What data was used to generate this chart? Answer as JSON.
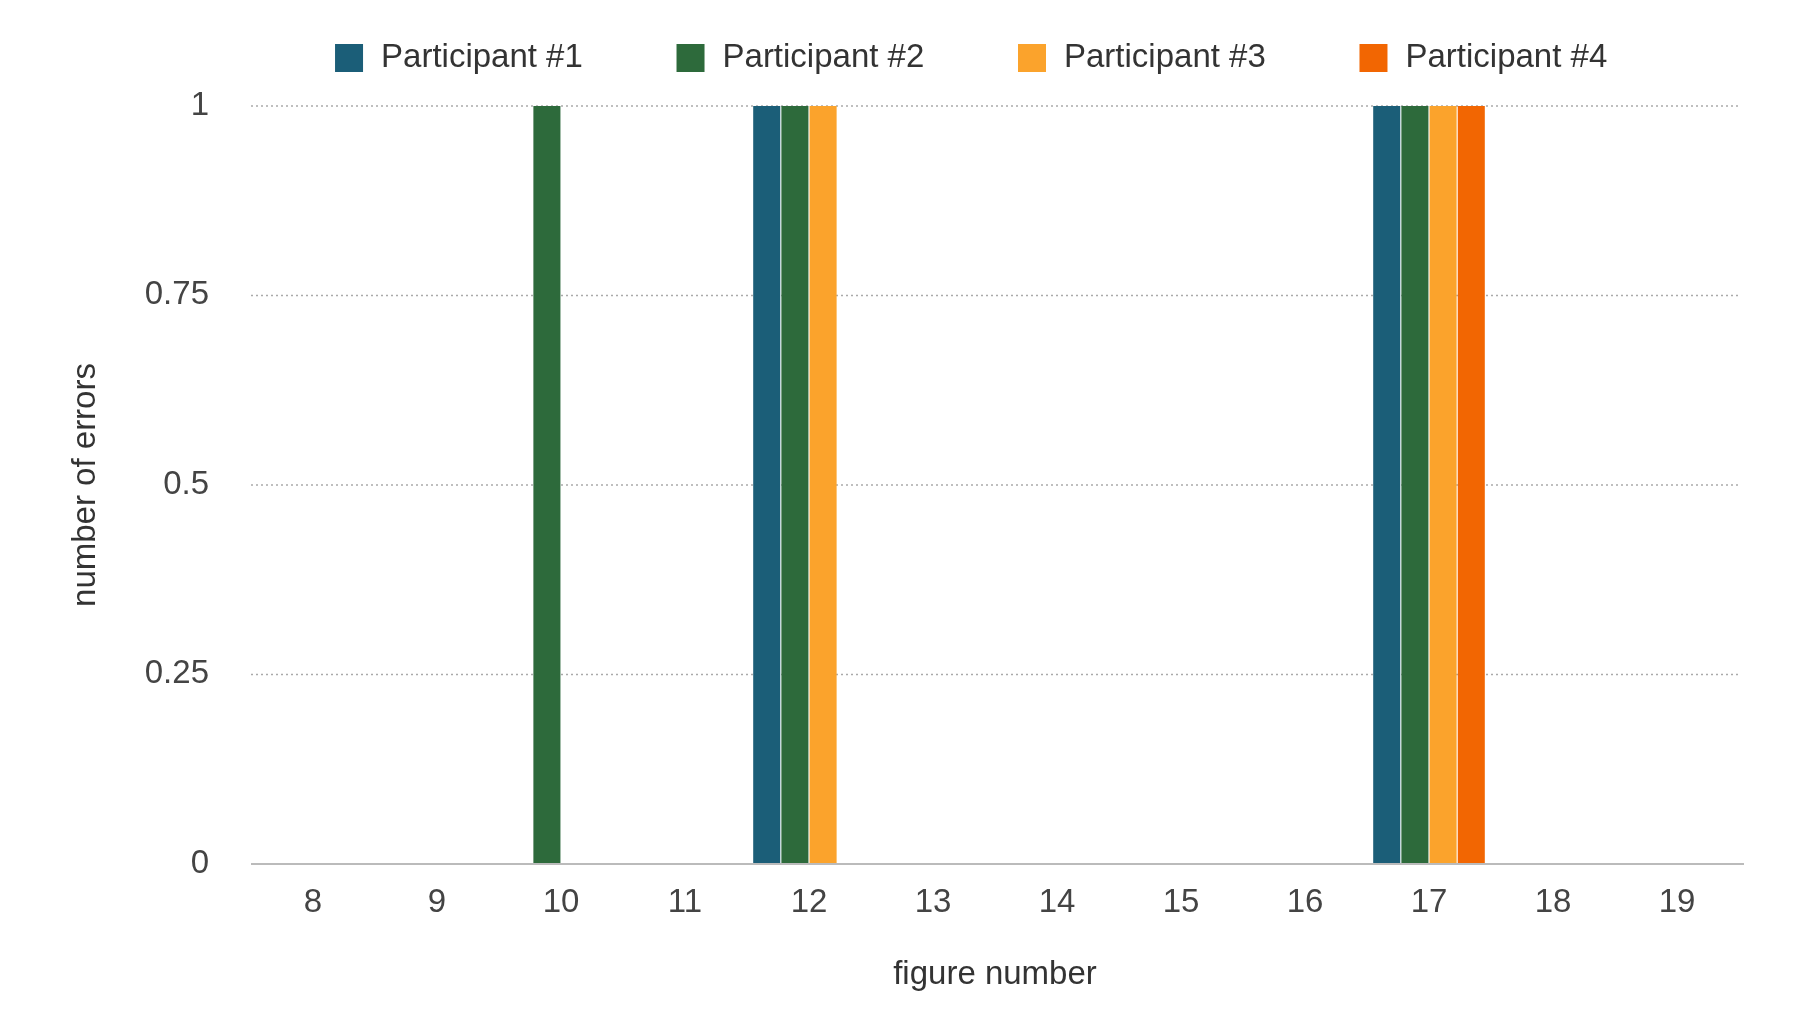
{
  "chart_data": {
    "type": "bar",
    "xlabel": "figure number",
    "ylabel": "number of errors",
    "categories": [
      "8",
      "9",
      "10",
      "11",
      "12",
      "13",
      "14",
      "15",
      "16",
      "17",
      "18",
      "19"
    ],
    "series": [
      {
        "name": "Participant #1",
        "color": "#1b5e78",
        "values": [
          0,
          0,
          0,
          0,
          1,
          0,
          0,
          0,
          0,
          1,
          0,
          0
        ]
      },
      {
        "name": "Participant #2",
        "color": "#2d6a3b",
        "values": [
          0,
          0,
          1,
          0,
          1,
          0,
          0,
          0,
          0,
          1,
          0,
          0
        ]
      },
      {
        "name": "Participant #3",
        "color": "#fba32c",
        "values": [
          0,
          0,
          0,
          0,
          1,
          0,
          0,
          0,
          0,
          1,
          0,
          0
        ]
      },
      {
        "name": "Participant #4",
        "color": "#f26602",
        "values": [
          0,
          0,
          0,
          0,
          0,
          0,
          0,
          0,
          0,
          1,
          0,
          0
        ]
      }
    ],
    "ylim": [
      0,
      1
    ],
    "yticks": [
      0,
      0.25,
      0.5,
      0.75,
      1
    ],
    "grid": "y",
    "legend": "top"
  }
}
